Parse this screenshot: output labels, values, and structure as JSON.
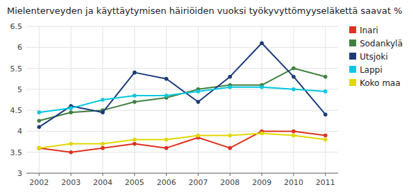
{
  "chart_data": {
    "type": "line",
    "title": "Mielenterveyden ja käyttäytymisen häiriöiden vuoksi työkyvyttömyyseläkettä saavat %",
    "x": [
      2002,
      2003,
      2004,
      2005,
      2006,
      2007,
      2008,
      2009,
      2010,
      2011
    ],
    "series": [
      {
        "name": "Inari",
        "color": "#e03020",
        "values": [
          3.6,
          3.5,
          3.6,
          3.7,
          3.6,
          3.85,
          3.6,
          4.0,
          4.0,
          3.9
        ]
      },
      {
        "name": "Sodankylä",
        "color": "#408040",
        "values": [
          4.25,
          4.45,
          4.5,
          4.7,
          4.8,
          5.0,
          5.1,
          5.1,
          5.5,
          5.3
        ]
      },
      {
        "name": "Utsjoki",
        "color": "#1a3a7a",
        "values": [
          4.1,
          4.6,
          4.45,
          5.4,
          5.25,
          4.7,
          5.3,
          6.1,
          5.3,
          4.4
        ]
      },
      {
        "name": "Lappi",
        "color": "#00c8e0",
        "values": [
          4.45,
          4.55,
          4.75,
          4.85,
          4.85,
          4.95,
          5.05,
          5.05,
          5.0,
          4.95
        ]
      },
      {
        "name": "Koko maa",
        "color": "#e0d800",
        "values": [
          3.6,
          3.7,
          3.7,
          3.8,
          3.8,
          3.9,
          3.9,
          3.95,
          3.9,
          3.8
        ]
      }
    ],
    "xlim": [
      2001.6,
      2011.4
    ],
    "xticks": [
      2002,
      2003,
      2004,
      2005,
      2006,
      2007,
      2008,
      2009,
      2010,
      2011
    ],
    "ylim": [
      3.0,
      6.5
    ],
    "yticks": [
      3,
      3.5,
      4,
      4.5,
      5,
      5.5,
      6,
      6.5
    ],
    "grid": true,
    "legend": "right",
    "marker": "circle"
  }
}
